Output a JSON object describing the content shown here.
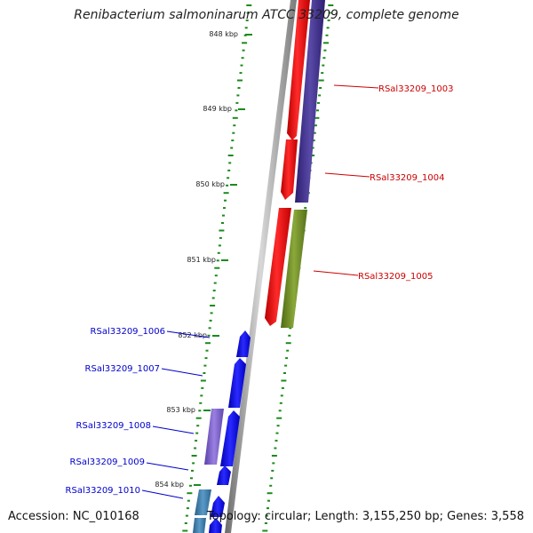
{
  "title": "Renibacterium salmoninarum ATCC 33209, complete genome",
  "accession": "Accession: NC_010168",
  "summary": "Topology: circular; Length: 3,155,250 bp; Genes: 3,558",
  "colors": {
    "backbone": "#8a8a8a",
    "tick": "#1c8a1c",
    "forward_label": "#0000cc",
    "reverse_label": "#cc0000",
    "red_gene": "#ee0000",
    "purple_gene": "#3c2c90",
    "olive_gene": "#6b8a1f",
    "blue_gene": "#0000ff",
    "lavender_gene": "#7a5cc8",
    "teal_gene": "#3a7aa8"
  },
  "scale_labels": [
    "848 kbp",
    "849 kbp",
    "850 kbp",
    "851 kbp",
    "852 kbp",
    "853 kbp",
    "854 kbp"
  ],
  "genes": [
    {
      "id": "RSal33209_1003",
      "strand": "reverse"
    },
    {
      "id": "RSal33209_1004",
      "strand": "reverse"
    },
    {
      "id": "RSal33209_1005",
      "strand": "reverse"
    },
    {
      "id": "RSal33209_1006",
      "strand": "forward"
    },
    {
      "id": "RSal33209_1007",
      "strand": "forward"
    },
    {
      "id": "RSal33209_1008",
      "strand": "forward"
    },
    {
      "id": "RSal33209_1009",
      "strand": "forward"
    },
    {
      "id": "RSal33209_1010",
      "strand": "forward"
    }
  ]
}
